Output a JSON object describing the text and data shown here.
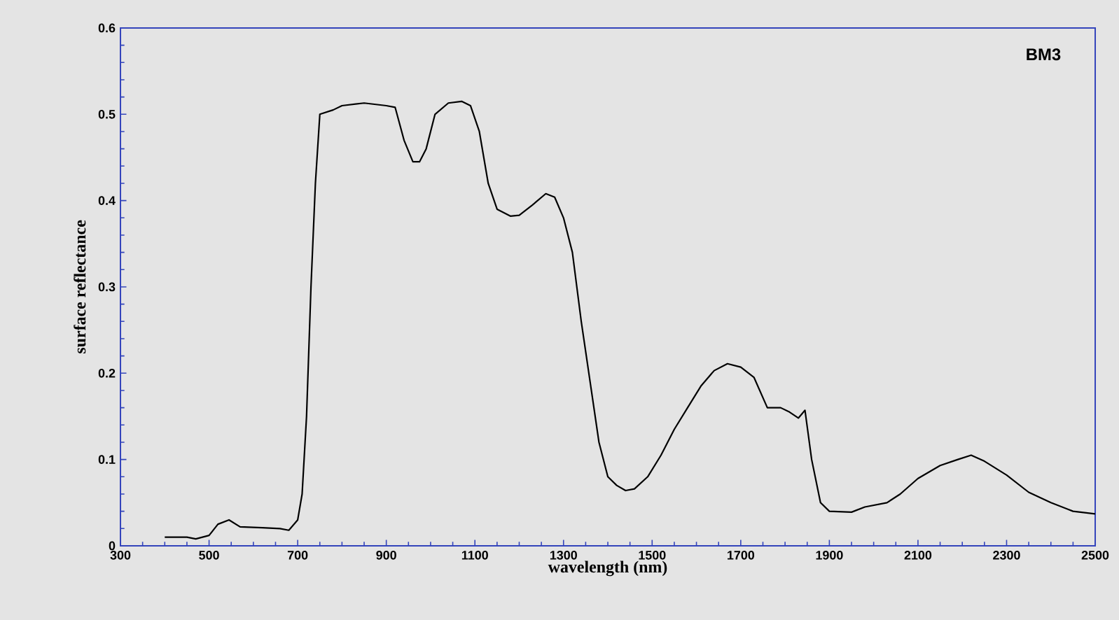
{
  "chart_data": {
    "type": "line",
    "xlabel": "wavelength (nm)",
    "ylabel": "surface reflectance",
    "annotations": [
      "BM3"
    ],
    "xlim": [
      300,
      2500
    ],
    "xticks": [
      300,
      500,
      700,
      900,
      1100,
      1300,
      1500,
      1700,
      1900,
      2100,
      2300,
      2500
    ],
    "ylim": [
      0,
      0.6
    ],
    "yticks": [
      0,
      0.1,
      0.2,
      0.3,
      0.4,
      0.5,
      0.6
    ],
    "grid": false,
    "marker": "none",
    "line_style": "solid",
    "series": [
      {
        "color": "#000000",
        "x": [
          400,
          450,
          470,
          500,
          520,
          545,
          570,
          620,
          660,
          680,
          700,
          710,
          720,
          730,
          740,
          750,
          780,
          800,
          850,
          900,
          920,
          940,
          960,
          975,
          990,
          1010,
          1040,
          1070,
          1090,
          1110,
          1130,
          1150,
          1180,
          1200,
          1230,
          1260,
          1280,
          1300,
          1320,
          1340,
          1360,
          1380,
          1400,
          1420,
          1440,
          1460,
          1490,
          1520,
          1550,
          1580,
          1610,
          1640,
          1670,
          1700,
          1730,
          1760,
          1790,
          1810,
          1830,
          1845,
          1860,
          1880,
          1900,
          1950,
          1980,
          2030,
          2060,
          2100,
          2150,
          2190,
          2220,
          2250,
          2300,
          2350,
          2400,
          2450,
          2500
        ],
        "values": [
          0.01,
          0.01,
          0.008,
          0.012,
          0.025,
          0.03,
          0.022,
          0.021,
          0.02,
          0.018,
          0.03,
          0.06,
          0.15,
          0.3,
          0.42,
          0.5,
          0.505,
          0.51,
          0.513,
          0.51,
          0.508,
          0.47,
          0.445,
          0.445,
          0.46,
          0.5,
          0.513,
          0.515,
          0.51,
          0.48,
          0.42,
          0.39,
          0.382,
          0.383,
          0.395,
          0.408,
          0.404,
          0.38,
          0.34,
          0.26,
          0.19,
          0.12,
          0.08,
          0.07,
          0.064,
          0.066,
          0.08,
          0.105,
          0.135,
          0.16,
          0.185,
          0.203,
          0.211,
          0.207,
          0.195,
          0.16,
          0.16,
          0.155,
          0.148,
          0.157,
          0.1,
          0.05,
          0.04,
          0.039,
          0.045,
          0.05,
          0.06,
          0.078,
          0.093,
          0.1,
          0.105,
          0.098,
          0.082,
          0.062,
          0.05,
          0.04,
          0.037
        ]
      }
    ]
  }
}
